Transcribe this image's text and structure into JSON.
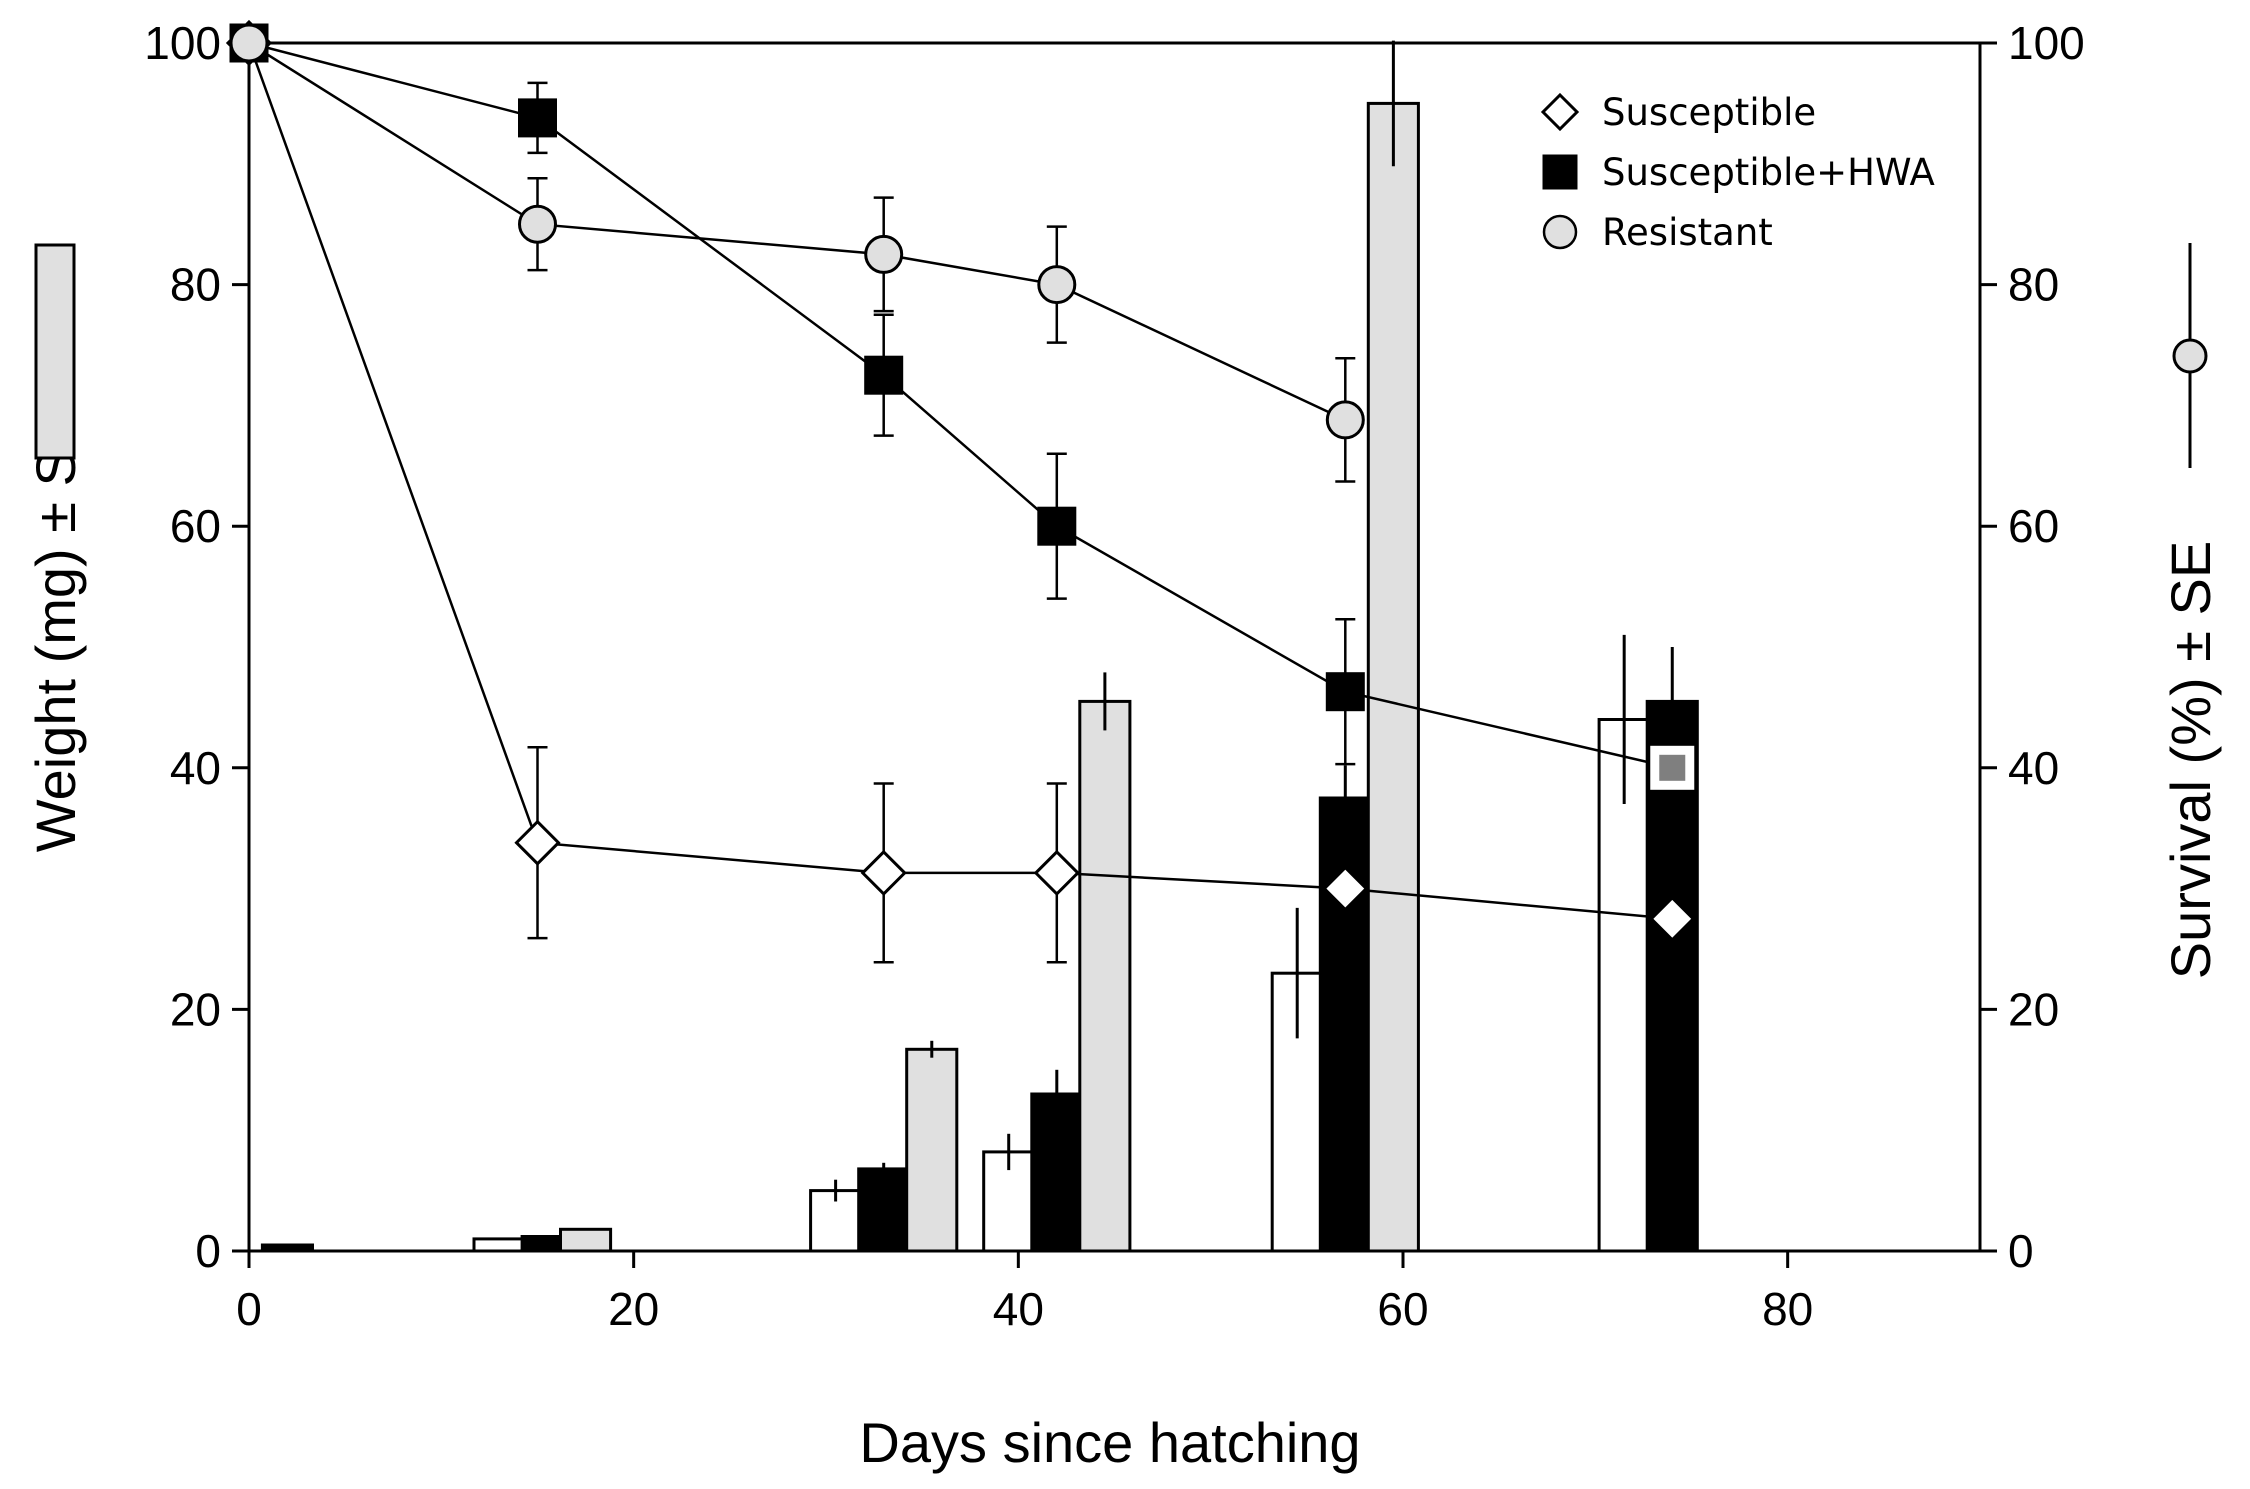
{
  "chart_data": {
    "type": "bar+line",
    "title": "",
    "xlabel": "Days since hatching",
    "ylabel_left": "Weight (mg) ± SE",
    "ylabel_right": "Survival (%) ± SE",
    "xlim": [
      0,
      90
    ],
    "ylim_left": [
      0,
      100
    ],
    "ylim_right": [
      0,
      100
    ],
    "x_ticks": [
      "0",
      "20",
      "40",
      "60",
      "80"
    ],
    "x_tick_values": [
      0,
      20,
      40,
      60,
      80
    ],
    "y_ticks_left": [
      "0",
      "20",
      "40",
      "60",
      "80",
      "100"
    ],
    "y_ticks_right": [
      "0",
      "20",
      "40",
      "60",
      "80",
      "100"
    ],
    "y_tick_values": [
      0,
      20,
      40,
      60,
      80,
      100
    ],
    "legend": [
      "Susceptible",
      "Susceptible+HWA",
      "Resistant"
    ],
    "legend_position": "top-right",
    "colors": {
      "susceptible": "#ffffff",
      "susceptible_hwa": "#000000",
      "resistant": "#e0e0e0",
      "late_marker": "#7f7f7f"
    },
    "weight_bars": [
      {
        "series": "Susceptible+HWA",
        "day": 2,
        "weight": 0.5,
        "se": 0
      },
      {
        "series": "Susceptible",
        "day": 13,
        "weight": 1.0,
        "se": 0
      },
      {
        "series": "Susceptible+HWA",
        "day": 15.5,
        "weight": 1.2,
        "se": 0
      },
      {
        "series": "Resistant",
        "day": 17.5,
        "weight": 1.8,
        "se": 0
      },
      {
        "series": "Susceptible",
        "day": 30.5,
        "weight": 5.0,
        "se": 0.9
      },
      {
        "series": "Susceptible+HWA",
        "day": 33,
        "weight": 6.8,
        "se": 0.5
      },
      {
        "series": "Resistant",
        "day": 35.5,
        "weight": 16.7,
        "se": 0.7
      },
      {
        "series": "Susceptible",
        "day": 39.5,
        "weight": 8.2,
        "se": 1.5
      },
      {
        "series": "Susceptible+HWA",
        "day": 42,
        "weight": 13.0,
        "se": 2.0
      },
      {
        "series": "Resistant",
        "day": 44.5,
        "weight": 45.5,
        "se": 2.4
      },
      {
        "series": "Susceptible",
        "day": 54.5,
        "weight": 23.0,
        "se": 5.4
      },
      {
        "series": "Susceptible+HWA",
        "day": 57,
        "weight": 37.5,
        "se": 2.7
      },
      {
        "series": "Resistant",
        "day": 59.5,
        "weight": 95.0,
        "se": 5.2
      },
      {
        "series": "Susceptible",
        "day": 71.5,
        "weight": 44.0,
        "se": 7.0
      },
      {
        "series": "Susceptible+HWA",
        "day": 74,
        "weight": 45.5,
        "se": 4.5
      }
    ],
    "survival_series": [
      {
        "name": "Susceptible",
        "marker": "diamond",
        "x": [
          0,
          15,
          33,
          42,
          57,
          74
        ],
        "y": [
          100,
          33.8,
          31.3,
          31.3,
          30.0,
          27.5
        ],
        "se": [
          0,
          7.9,
          7.4,
          7.4,
          0,
          0
        ]
      },
      {
        "name": "Susceptible+HWA",
        "marker": "square",
        "x": [
          0,
          15,
          33,
          42,
          57,
          74
        ],
        "y": [
          100,
          93.8,
          72.5,
          60.0,
          46.3,
          40.0
        ],
        "se": [
          0,
          2.9,
          5.0,
          6.0,
          6.0,
          0
        ]
      },
      {
        "name": "Resistant",
        "marker": "circle",
        "x": [
          0,
          15,
          33,
          42,
          57
        ],
        "y": [
          100,
          85.0,
          82.5,
          80.0,
          68.8
        ],
        "se": [
          0,
          3.8,
          4.7,
          4.8,
          5.1
        ]
      }
    ]
  }
}
